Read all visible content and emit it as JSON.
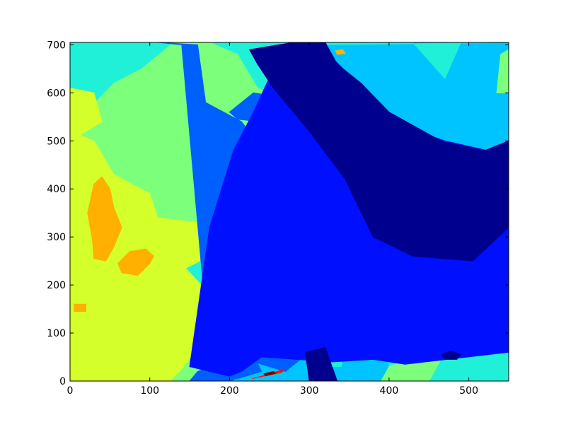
{
  "chart_data": {
    "type": "heatmap",
    "colormap": "jet",
    "x_ticks": [
      0,
      100,
      200,
      300,
      400,
      500
    ],
    "y_ticks": [
      0,
      100,
      200,
      300,
      400,
      500,
      600,
      700
    ],
    "xlim": [
      0,
      550
    ],
    "ylim": [
      0,
      705
    ],
    "levels": [
      {
        "name": "level-1",
        "color": "#00008f"
      },
      {
        "name": "level-2",
        "color": "#0010ff"
      },
      {
        "name": "level-3",
        "color": "#0060ff"
      },
      {
        "name": "level-4",
        "color": "#00c4ff"
      },
      {
        "name": "level-5",
        "color": "#20f0d8"
      },
      {
        "name": "level-6",
        "color": "#7cff7a"
      },
      {
        "name": "level-7",
        "color": "#d4ff2a"
      },
      {
        "name": "level-8",
        "color": "#ffb000"
      },
      {
        "name": "level-9",
        "color": "#ff1000"
      },
      {
        "name": "level-10",
        "color": "#800000"
      }
    ],
    "regions": [
      {
        "level": 4,
        "x": [
          0,
          550,
          550,
          0
        ],
        "y": [
          0,
          0,
          705,
          705
        ]
      },
      {
        "level": 5,
        "x": [
          0,
          210,
          170,
          110,
          150,
          215,
          180,
          190,
          300,
          340,
          280,
          315,
          550,
          550,
          600,
          620,
          640,
          560,
          490,
          470,
          430,
          0
        ],
        "y": [
          0,
          0,
          60,
          95,
          160,
          200,
          290,
          360,
          420,
          560,
          600,
          700,
          705,
          660,
          680,
          640,
          690,
          705,
          705,
          630,
          705,
          705
        ]
      },
      {
        "level": 5,
        "x": [
          300,
          340,
          345,
          320,
          300
        ],
        "y": [
          30,
          30,
          90,
          120,
          80
        ]
      },
      {
        "level": 5,
        "x": [
          400,
          550,
          550,
          460,
          400
        ],
        "y": [
          0,
          0,
          100,
          120,
          60
        ]
      },
      {
        "level": 6,
        "x": [
          0,
          190,
          200,
          220,
          0
        ],
        "y": [
          0,
          0,
          40,
          120,
          80
        ]
      },
      {
        "level": 6,
        "x": [
          0,
          10,
          60,
          110,
          120,
          150,
          220,
          250,
          260,
          300,
          280,
          235,
          210,
          175,
          130,
          90,
          55,
          20,
          0
        ],
        "y": [
          0,
          0,
          110,
          150,
          230,
          290,
          360,
          420,
          470,
          520,
          580,
          610,
          680,
          705,
          705,
          650,
          620,
          560,
          580
        ]
      },
      {
        "level": 6,
        "x": [
          390,
          450,
          470,
          430,
          400
        ],
        "y": [
          0,
          0,
          60,
          50,
          30
        ]
      },
      {
        "level": 6,
        "x": [
          535,
          550,
          550,
          540
        ],
        "y": [
          600,
          600,
          690,
          680
        ]
      },
      {
        "level": 7,
        "x": [
          0,
          125,
          140,
          165,
          170,
          145,
          175,
          180,
          160,
          110,
          100,
          55,
          30,
          0
        ],
        "y": [
          0,
          0,
          25,
          80,
          190,
          235,
          260,
          310,
          330,
          340,
          390,
          430,
          500,
          520
        ]
      },
      {
        "level": 7,
        "x": [
          0,
          20,
          40,
          30,
          0
        ],
        "y": [
          500,
          520,
          540,
          600,
          610
        ]
      },
      {
        "level": 8,
        "x": [
          30,
          45,
          55,
          65,
          55,
          50,
          40,
          30,
          22,
          28
        ],
        "y": [
          255,
          250,
          280,
          320,
          360,
          400,
          425,
          410,
          350,
          295
        ]
      },
      {
        "level": 8,
        "x": [
          65,
          85,
          100,
          105,
          95,
          75,
          60
        ],
        "y": [
          225,
          220,
          245,
          260,
          275,
          270,
          245
        ]
      },
      {
        "level": 8,
        "x": [
          5,
          20,
          20,
          5
        ],
        "y": [
          145,
          145,
          160,
          160
        ]
      },
      {
        "level": 3,
        "x": [
          110,
          160,
          170,
          215,
          260,
          300,
          285,
          330,
          355,
          335,
          300,
          270,
          190,
          170,
          140
        ],
        "y": [
          705,
          700,
          580,
          540,
          440,
          360,
          240,
          160,
          80,
          40,
          60,
          20,
          60,
          140,
          700
        ]
      },
      {
        "level": 3,
        "x": [
          200,
          230,
          265,
          240,
          210
        ],
        "y": [
          560,
          600,
          590,
          540,
          545
        ]
      },
      {
        "level": 3,
        "x": [
          360,
          420,
          455,
          440,
          380
        ],
        "y": [
          190,
          200,
          250,
          290,
          270
        ]
      },
      {
        "level": 3,
        "x": [
          150,
          200,
          240,
          230,
          185,
          160
        ],
        "y": [
          0,
          0,
          20,
          55,
          35,
          20
        ]
      },
      {
        "level": 2,
        "x": [
          150,
          200,
          215,
          240,
          330,
          380,
          420,
          550,
          550,
          470,
          400,
          360,
          310,
          285,
          255,
          230,
          205,
          175
        ],
        "y": [
          30,
          10,
          20,
          50,
          40,
          45,
          35,
          60,
          470,
          500,
          540,
          620,
          705,
          700,
          650,
          560,
          480,
          320
        ]
      },
      {
        "level": 1,
        "x": [
          225,
          280,
          320,
          335,
          365,
          400,
          465,
          520,
          550,
          550,
          505,
          430,
          380,
          345,
          300,
          255,
          235
        ],
        "y": [
          690,
          705,
          705,
          660,
          620,
          560,
          500,
          480,
          500,
          320,
          250,
          260,
          300,
          420,
          520,
          610,
          660
        ]
      },
      {
        "level": 1,
        "x": [
          300,
          335,
          320,
          295
        ],
        "y": [
          0,
          0,
          70,
          60
        ]
      },
      {
        "level": 1,
        "x": [
          470,
          485,
          490,
          478,
          466
        ],
        "y": [
          45,
          45,
          55,
          63,
          55
        ]
      },
      {
        "level": 9,
        "x": [
          228,
          265,
          270,
          240
        ],
        "y": [
          5,
          18,
          25,
          10
        ]
      },
      {
        "level": 10,
        "x": [
          245,
          258,
          255,
          243
        ],
        "y": [
          11,
          16,
          20,
          15
        ]
      },
      {
        "level": 8,
        "x": [
          335,
          345,
          342,
          333
        ],
        "y": [
          680,
          682,
          690,
          688
        ]
      }
    ]
  }
}
